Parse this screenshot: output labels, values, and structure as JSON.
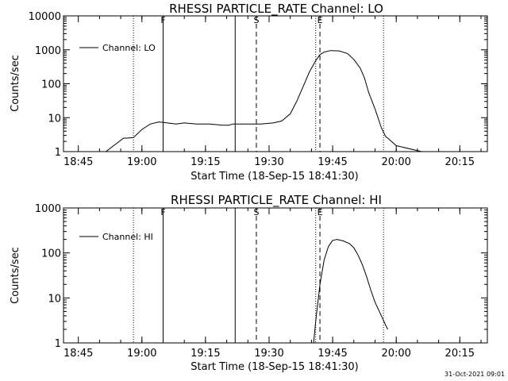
{
  "footer": {
    "timestamp": "31-Oct-2021 09:01"
  },
  "chart_data": [
    {
      "type": "line",
      "title": "RHESSI PARTICLE_RATE Channel: LO",
      "xlabel": "Start Time (18-Sep-15 18:41:30)",
      "ylabel": "Counts/sec",
      "yscale": "log",
      "ylim": [
        1,
        10000
      ],
      "xlim_minutes": [
        0,
        100
      ],
      "x_ticks": [
        "18:45",
        "19:00",
        "19:15",
        "19:30",
        "19:45",
        "20:00",
        "20:15"
      ],
      "y_ticks": [
        "1",
        "10",
        "100",
        "1000",
        "10000"
      ],
      "legend": {
        "position": "top-left",
        "entries": [
          "Channel: LO"
        ]
      },
      "markers": [
        {
          "label": "F",
          "time": "19:05",
          "style": "solid"
        },
        {
          "label": "",
          "time": "19:22",
          "style": "solid"
        },
        {
          "label": "S",
          "time": "19:27",
          "style": "dashed"
        },
        {
          "label": "E",
          "time": "19:42",
          "style": "dashed"
        },
        {
          "label": "",
          "time": "18:58",
          "style": "dotted"
        },
        {
          "label": "",
          "time": "19:41",
          "style": "dotted"
        },
        {
          "label": "",
          "time": "19:57",
          "style": "dotted"
        }
      ],
      "series": [
        {
          "name": "Channel: LO",
          "x": [
            "18:41:30",
            "18:47:30",
            "18:51:30",
            "18:55:40",
            "18:56:30",
            "18:58:00",
            "19:00:00",
            "19:02:00",
            "19:04:00",
            "19:06:00",
            "19:08:00",
            "19:10:00",
            "19:13:00",
            "19:16:00",
            "19:19:00",
            "19:20:30",
            "19:21:30",
            "19:24:30",
            "19:26:00",
            "19:28:00",
            "19:31:00",
            "19:33:00",
            "19:35:00",
            "19:36:30",
            "19:38:00",
            "19:39:30",
            "19:41:00",
            "19:42:00",
            "19:43:00",
            "19:44:30",
            "19:46:30",
            "19:48:30",
            "19:50:00",
            "19:51:30",
            "19:52:30",
            "19:53:30",
            "19:55:00",
            "19:56:30",
            "19:57:30",
            "19:58:00",
            "19:58:30",
            "20:00:00",
            "20:06:00"
          ],
          "y": [
            1,
            1,
            1,
            2.5,
            2.5,
            2.6,
            4.5,
            6.5,
            7.5,
            7.0,
            6.5,
            7.0,
            6.5,
            6.5,
            6.0,
            6.0,
            6.5,
            6.5,
            6.5,
            6.5,
            7,
            8,
            13,
            30,
            80,
            220,
            480,
            720,
            860,
            950,
            930,
            780,
            520,
            290,
            150,
            55,
            18,
            5,
            2.8,
            2.5,
            2.2,
            1.5,
            1
          ]
        }
      ]
    },
    {
      "type": "line",
      "title": "RHESSI PARTICLE_RATE Channel: HI",
      "xlabel": "Start Time (18-Sep-15 18:41:30)",
      "ylabel": "Counts/sec",
      "yscale": "log",
      "ylim": [
        1,
        1000
      ],
      "xlim_minutes": [
        0,
        100
      ],
      "x_ticks": [
        "18:45",
        "19:00",
        "19:15",
        "19:30",
        "19:45",
        "20:00",
        "20:15"
      ],
      "y_ticks": [
        "1",
        "10",
        "100",
        "1000"
      ],
      "legend": {
        "position": "top-left",
        "entries": [
          "Channel: HI"
        ]
      },
      "markers": [
        {
          "label": "F",
          "time": "19:05",
          "style": "solid"
        },
        {
          "label": "",
          "time": "19:22",
          "style": "solid"
        },
        {
          "label": "S",
          "time": "19:27",
          "style": "dashed"
        },
        {
          "label": "E",
          "time": "19:42",
          "style": "dashed"
        },
        {
          "label": "",
          "time": "18:58",
          "style": "dotted"
        },
        {
          "label": "",
          "time": "19:41",
          "style": "dotted"
        },
        {
          "label": "",
          "time": "19:57",
          "style": "dotted"
        }
      ],
      "series": [
        {
          "name": "Channel: HI",
          "x": [
            "19:40:30",
            "19:41:00",
            "19:42:00",
            "19:43:00",
            "19:44:00",
            "19:45:00",
            "19:46:00",
            "19:47:30",
            "19:49:00",
            "19:50:00",
            "19:51:00",
            "19:52:00",
            "19:53:00",
            "19:54:00",
            "19:55:00",
            "19:56:30",
            "19:57:30",
            "19:58:00"
          ],
          "y": [
            1,
            3,
            20,
            70,
            140,
            190,
            200,
            185,
            160,
            130,
            90,
            55,
            30,
            15,
            8,
            4,
            2.5,
            2
          ]
        }
      ]
    }
  ]
}
